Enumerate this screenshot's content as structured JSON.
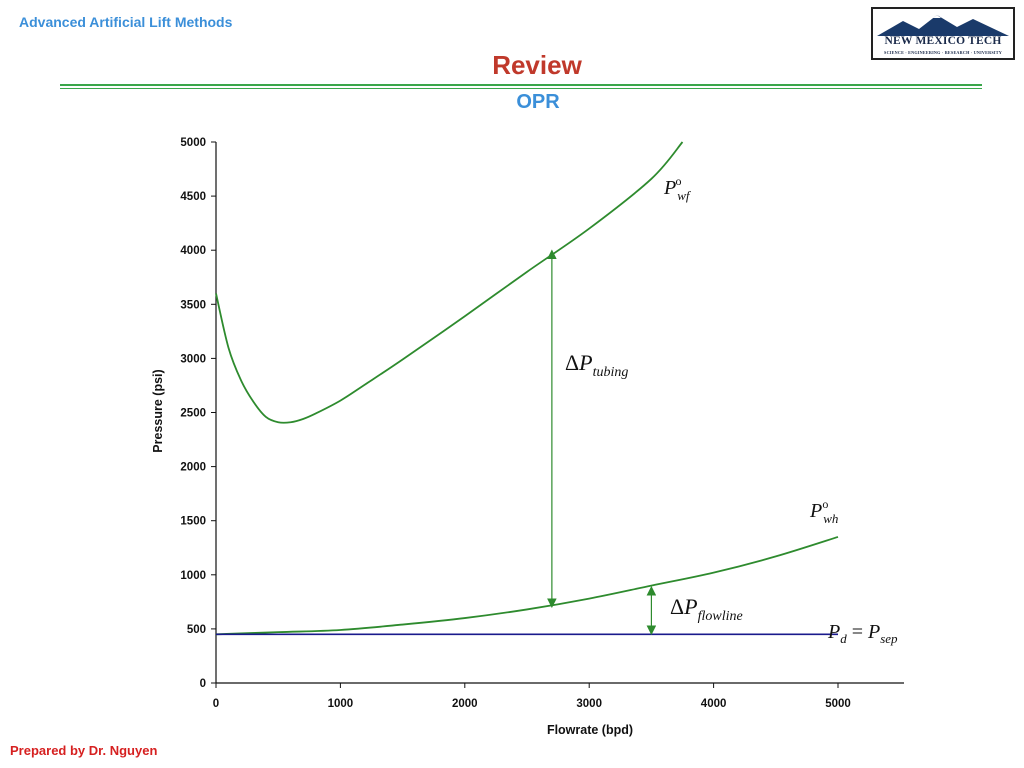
{
  "header": {
    "course": "Advanced Artificial Lift Methods"
  },
  "logo": {
    "name": "NEW MEXICO TECH",
    "tagline": "SCIENCE · ENGINEERING · RESEARCH · UNIVERSITY"
  },
  "slide": {
    "title": "Review",
    "subtitle": "OPR"
  },
  "footer": {
    "author": "Prepared by Dr. Nguyen"
  },
  "colors": {
    "curve": "#2e8b2e",
    "separator_line": "#1a1a8c",
    "title": "#c0392b",
    "accent": "#3b8fd9"
  },
  "chart_data": {
    "type": "line",
    "xlabel": "Flowrate (bpd)",
    "ylabel": "Pressure (psi)",
    "xlim": [
      0,
      5000
    ],
    "ylim": [
      0,
      5000
    ],
    "xticks": [
      0,
      1000,
      2000,
      3000,
      4000,
      5000
    ],
    "yticks": [
      0,
      500,
      1000,
      1500,
      2000,
      2500,
      3000,
      3500,
      4000,
      4500,
      5000
    ],
    "grid": false,
    "series": [
      {
        "name": "Pwf",
        "x": [
          0,
          100,
          200,
          300,
          400,
          500,
          600,
          700,
          800,
          1000,
          1200,
          1500,
          2000,
          2500,
          3000,
          3500,
          3750
        ],
        "y": [
          3600,
          3100,
          2800,
          2600,
          2460,
          2410,
          2410,
          2440,
          2490,
          2610,
          2760,
          2990,
          3390,
          3800,
          4200,
          4660,
          5000
        ]
      },
      {
        "name": "Pwh",
        "x": [
          0,
          500,
          1000,
          1500,
          2000,
          2500,
          3000,
          3500,
          4000,
          4500,
          5000
        ],
        "y": [
          450,
          470,
          490,
          540,
          600,
          680,
          780,
          900,
          1020,
          1170,
          1350
        ]
      },
      {
        "name": "Pd = Psep",
        "x": [
          0,
          5000
        ],
        "y": [
          450,
          450
        ]
      }
    ],
    "annotations": [
      {
        "label": "ΔPtubing",
        "x": 2700,
        "y_from": 700,
        "y_to": 4000
      },
      {
        "label": "ΔPflowline",
        "x": 3500,
        "y_from": 450,
        "y_to": 890
      }
    ]
  }
}
